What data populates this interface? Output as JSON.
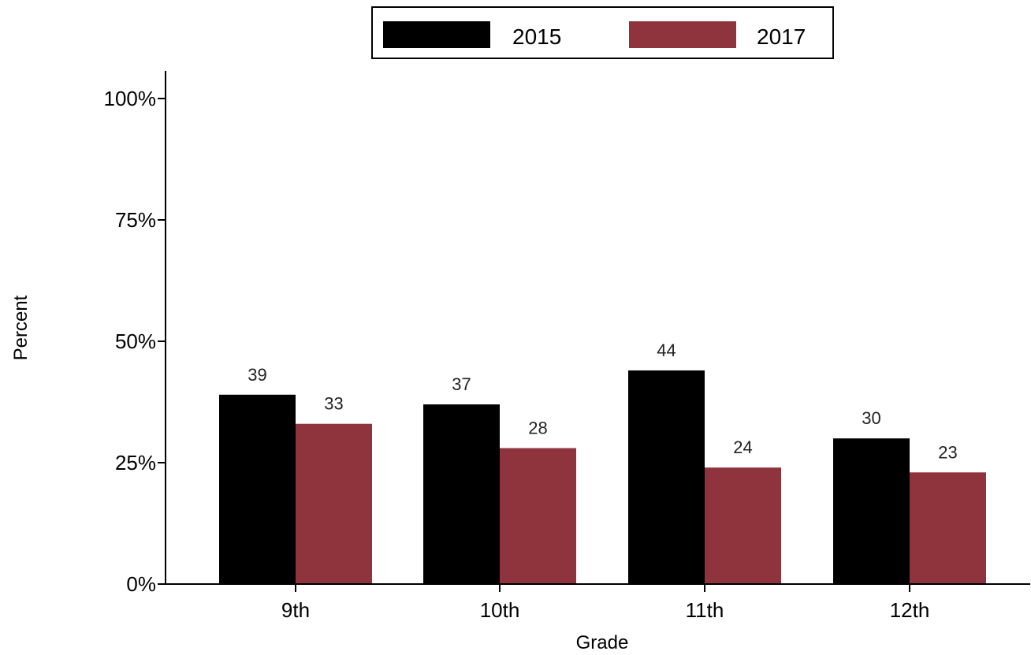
{
  "chart_data": {
    "type": "bar",
    "categories": [
      "9th",
      "10th",
      "11th",
      "12th"
    ],
    "series": [
      {
        "name": "2015",
        "values": [
          39,
          37,
          44,
          30
        ],
        "labels": [
          "39",
          "37",
          "44",
          "30"
        ]
      },
      {
        "name": "2017",
        "values": [
          33,
          28,
          24,
          23
        ],
        "labels": [
          "33",
          "28",
          "24",
          "23"
        ]
      }
    ],
    "colors": [
      "#000000",
      "#8f343c"
    ],
    "xlabel": "Grade",
    "ylabel": "Percent",
    "ylim": [
      0,
      100
    ],
    "yticks": [
      0,
      25,
      50,
      75,
      100
    ],
    "ytick_labels": [
      "0%",
      "25%",
      "50%",
      "75%",
      "100%"
    ],
    "legend_position": "top-center",
    "grid": false
  }
}
